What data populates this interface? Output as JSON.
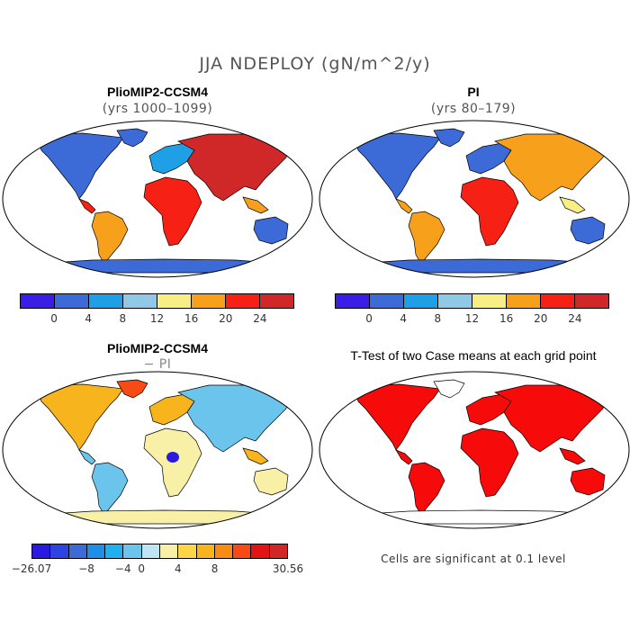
{
  "figure": {
    "title": "JJA NDEPLOY (gN/m^2/y)"
  },
  "panels": [
    {
      "title": "PlioMIP2-CCSM4",
      "subtitle": "(yrs 1000–1099)",
      "colorbar": {
        "colors": [
          "#3a1ee6",
          "#3c6ad6",
          "#1fa0e6",
          "#90c8e6",
          "#f7ef86",
          "#f7a01c",
          "#f72014",
          "#d02828"
        ],
        "labels": [
          "0",
          "4",
          "8",
          "12",
          "16",
          "20",
          "24"
        ]
      }
    },
    {
      "title": "PI",
      "subtitle": "(yrs 80–179)",
      "colorbar": {
        "colors": [
          "#3a1ee6",
          "#3c6ad6",
          "#1fa0e6",
          "#90c8e6",
          "#f7ef86",
          "#f7a01c",
          "#f72014",
          "#d02828"
        ],
        "labels": [
          "0",
          "4",
          "8",
          "12",
          "16",
          "20",
          "24"
        ]
      }
    },
    {
      "title": "PlioMIP2-CCSM4",
      "subtitle": "− PI",
      "colorbar": {
        "colors": [
          "#2a1ae0",
          "#2e44e0",
          "#3c6ad6",
          "#1f8ee6",
          "#1fb0f0",
          "#6ac4ec",
          "#bfe4f4",
          "#f7f0a6",
          "#fcd648",
          "#f7b41c",
          "#f78c14",
          "#f74a14",
          "#e01414",
          "#d02828"
        ],
        "labels": [
          "−26.07",
          "−8",
          "−4",
          "0",
          "4",
          "8",
          "30.56"
        ]
      }
    },
    {
      "title": "T-Test of two Case means at each grid point",
      "note": "Cells are significant at 0.1 level"
    }
  ]
}
